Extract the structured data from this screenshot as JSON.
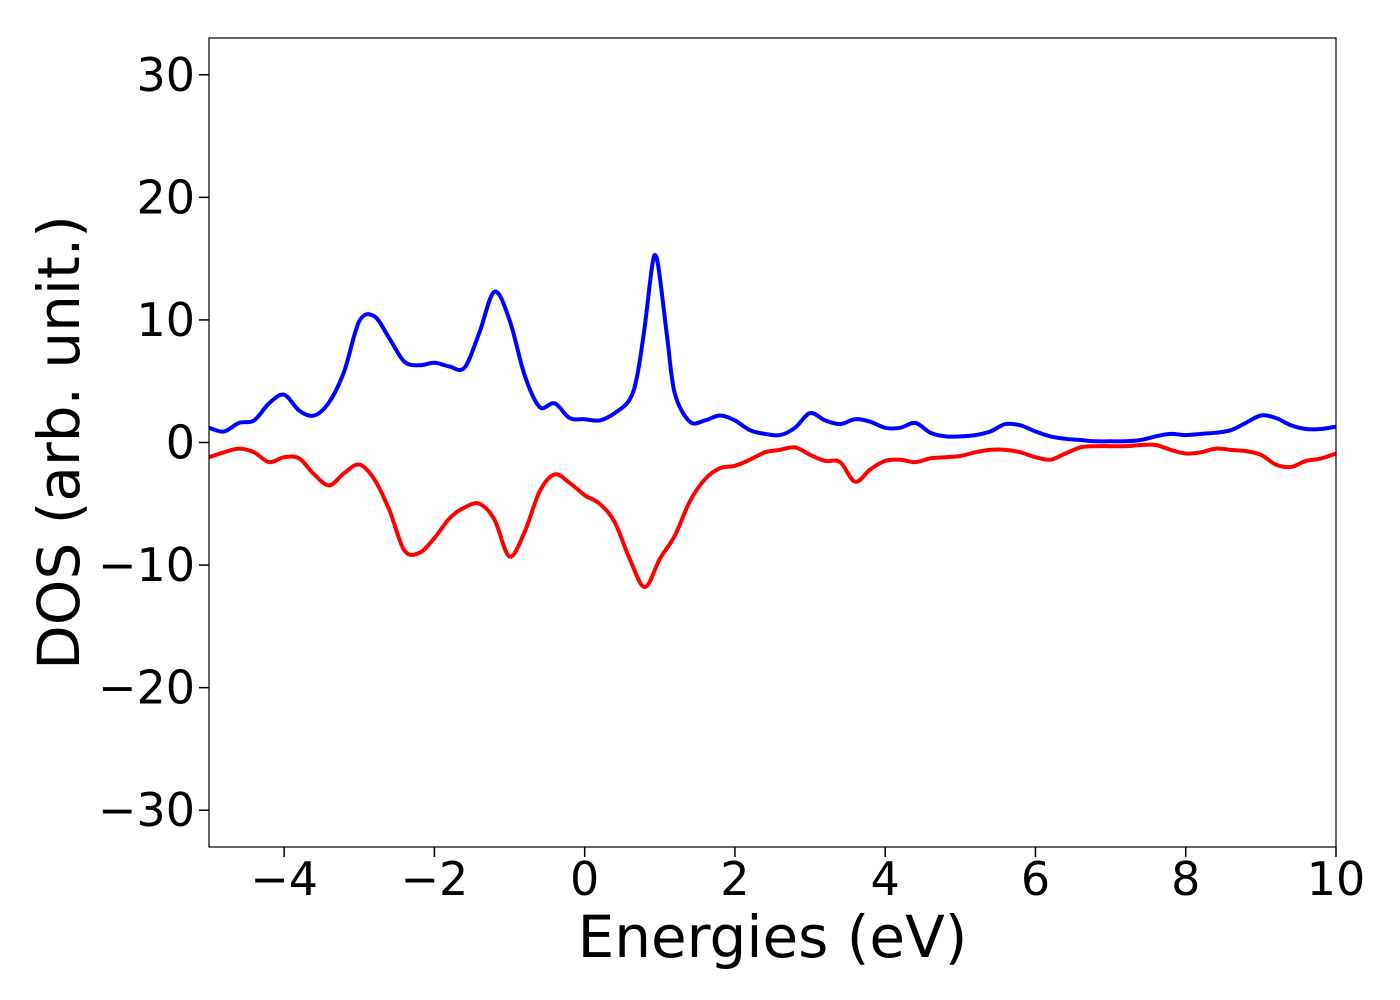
{
  "chart_data": {
    "type": "line",
    "title": "",
    "xlabel": "Energies (eV)",
    "ylabel": "DOS (arb. unit.)",
    "xlim": [
      -5,
      10
    ],
    "ylim": [
      -33,
      33
    ],
    "x_ticks": [
      -4,
      -2,
      0,
      2,
      4,
      6,
      8,
      10
    ],
    "y_ticks": [
      -30,
      -20,
      -10,
      0,
      10,
      20,
      30
    ],
    "grid": false,
    "legend": "none",
    "series": [
      {
        "color": "#0000ff",
        "points": [
          [
            -5.0,
            1.2
          ],
          [
            -4.8,
            0.9
          ],
          [
            -4.6,
            1.6
          ],
          [
            -4.4,
            1.8
          ],
          [
            -4.2,
            3.2
          ],
          [
            -4.0,
            3.9
          ],
          [
            -3.8,
            2.6
          ],
          [
            -3.6,
            2.2
          ],
          [
            -3.4,
            3.3
          ],
          [
            -3.2,
            5.8
          ],
          [
            -3.0,
            9.9
          ],
          [
            -2.8,
            10.3
          ],
          [
            -2.6,
            8.5
          ],
          [
            -2.4,
            6.6
          ],
          [
            -2.2,
            6.3
          ],
          [
            -2.0,
            6.5
          ],
          [
            -1.8,
            6.2
          ],
          [
            -1.6,
            6.1
          ],
          [
            -1.4,
            9.0
          ],
          [
            -1.2,
            12.3
          ],
          [
            -1.0,
            10.0
          ],
          [
            -0.8,
            5.5
          ],
          [
            -0.6,
            2.9
          ],
          [
            -0.4,
            3.2
          ],
          [
            -0.2,
            2.0
          ],
          [
            0.0,
            1.9
          ],
          [
            0.2,
            1.8
          ],
          [
            0.4,
            2.4
          ],
          [
            0.6,
            3.5
          ],
          [
            0.7,
            5.5
          ],
          [
            0.8,
            9.5
          ],
          [
            0.9,
            14.5
          ],
          [
            0.95,
            15.2
          ],
          [
            1.0,
            13.5
          ],
          [
            1.1,
            8.5
          ],
          [
            1.2,
            4.0
          ],
          [
            1.4,
            1.7
          ],
          [
            1.6,
            1.8
          ],
          [
            1.8,
            2.2
          ],
          [
            2.0,
            1.8
          ],
          [
            2.2,
            1.0
          ],
          [
            2.4,
            0.7
          ],
          [
            2.6,
            0.6
          ],
          [
            2.8,
            1.2
          ],
          [
            3.0,
            2.4
          ],
          [
            3.2,
            1.8
          ],
          [
            3.4,
            1.5
          ],
          [
            3.6,
            1.9
          ],
          [
            3.8,
            1.7
          ],
          [
            4.0,
            1.2
          ],
          [
            4.2,
            1.2
          ],
          [
            4.4,
            1.6
          ],
          [
            4.6,
            0.8
          ],
          [
            4.8,
            0.5
          ],
          [
            5.0,
            0.5
          ],
          [
            5.2,
            0.6
          ],
          [
            5.4,
            0.9
          ],
          [
            5.6,
            1.5
          ],
          [
            5.8,
            1.4
          ],
          [
            6.0,
            0.9
          ],
          [
            6.2,
            0.5
          ],
          [
            6.4,
            0.3
          ],
          [
            6.6,
            0.2
          ],
          [
            6.8,
            0.1
          ],
          [
            7.0,
            0.1
          ],
          [
            7.2,
            0.1
          ],
          [
            7.4,
            0.2
          ],
          [
            7.6,
            0.5
          ],
          [
            7.8,
            0.7
          ],
          [
            8.0,
            0.6
          ],
          [
            8.2,
            0.7
          ],
          [
            8.4,
            0.8
          ],
          [
            8.6,
            1.0
          ],
          [
            8.8,
            1.6
          ],
          [
            9.0,
            2.2
          ],
          [
            9.2,
            2.0
          ],
          [
            9.4,
            1.4
          ],
          [
            9.6,
            1.1
          ],
          [
            9.8,
            1.1
          ],
          [
            10.0,
            1.3
          ]
        ]
      },
      {
        "color": "#ff0000",
        "points": [
          [
            -5.0,
            -1.2
          ],
          [
            -4.8,
            -0.8
          ],
          [
            -4.6,
            -0.5
          ],
          [
            -4.4,
            -0.8
          ],
          [
            -4.2,
            -1.6
          ],
          [
            -4.0,
            -1.2
          ],
          [
            -3.8,
            -1.3
          ],
          [
            -3.6,
            -2.6
          ],
          [
            -3.4,
            -3.5
          ],
          [
            -3.2,
            -2.5
          ],
          [
            -3.0,
            -1.8
          ],
          [
            -2.8,
            -3.0
          ],
          [
            -2.6,
            -5.5
          ],
          [
            -2.4,
            -8.8
          ],
          [
            -2.2,
            -9.0
          ],
          [
            -2.0,
            -7.8
          ],
          [
            -1.8,
            -6.2
          ],
          [
            -1.6,
            -5.3
          ],
          [
            -1.4,
            -5.0
          ],
          [
            -1.2,
            -6.3
          ],
          [
            -1.0,
            -9.3
          ],
          [
            -0.8,
            -7.3
          ],
          [
            -0.6,
            -4.0
          ],
          [
            -0.4,
            -2.6
          ],
          [
            -0.2,
            -3.3
          ],
          [
            0.0,
            -4.3
          ],
          [
            0.2,
            -5.0
          ],
          [
            0.4,
            -6.5
          ],
          [
            0.6,
            -9.5
          ],
          [
            0.8,
            -11.8
          ],
          [
            1.0,
            -9.5
          ],
          [
            1.2,
            -7.6
          ],
          [
            1.4,
            -4.8
          ],
          [
            1.6,
            -3.0
          ],
          [
            1.8,
            -2.1
          ],
          [
            2.0,
            -1.9
          ],
          [
            2.2,
            -1.4
          ],
          [
            2.4,
            -0.8
          ],
          [
            2.6,
            -0.6
          ],
          [
            2.8,
            -0.4
          ],
          [
            3.0,
            -1.0
          ],
          [
            3.2,
            -1.5
          ],
          [
            3.4,
            -1.6
          ],
          [
            3.6,
            -3.2
          ],
          [
            3.8,
            -2.2
          ],
          [
            4.0,
            -1.5
          ],
          [
            4.2,
            -1.4
          ],
          [
            4.4,
            -1.6
          ],
          [
            4.6,
            -1.3
          ],
          [
            4.8,
            -1.2
          ],
          [
            5.0,
            -1.1
          ],
          [
            5.2,
            -0.8
          ],
          [
            5.4,
            -0.6
          ],
          [
            5.6,
            -0.6
          ],
          [
            5.8,
            -0.8
          ],
          [
            6.0,
            -1.2
          ],
          [
            6.2,
            -1.4
          ],
          [
            6.4,
            -0.9
          ],
          [
            6.6,
            -0.4
          ],
          [
            6.8,
            -0.3
          ],
          [
            7.0,
            -0.3
          ],
          [
            7.2,
            -0.3
          ],
          [
            7.4,
            -0.2
          ],
          [
            7.6,
            -0.2
          ],
          [
            7.8,
            -0.6
          ],
          [
            8.0,
            -0.9
          ],
          [
            8.2,
            -0.8
          ],
          [
            8.4,
            -0.5
          ],
          [
            8.6,
            -0.6
          ],
          [
            8.8,
            -0.7
          ],
          [
            9.0,
            -1.0
          ],
          [
            9.2,
            -1.8
          ],
          [
            9.4,
            -2.0
          ],
          [
            9.6,
            -1.5
          ],
          [
            9.8,
            -1.3
          ],
          [
            10.0,
            -0.9
          ]
        ]
      }
    ]
  }
}
